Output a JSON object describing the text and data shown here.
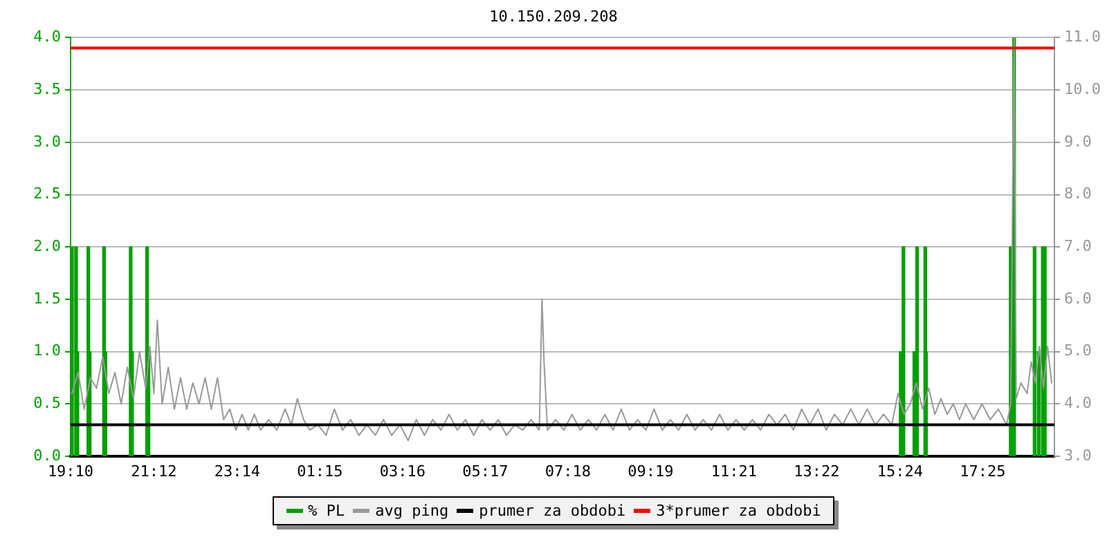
{
  "chart_data": {
    "type": "line",
    "title": "10.150.209.208",
    "legend": "bottom",
    "grid": "y",
    "marker": "none",
    "xlim": [
      "--01-01T19:10",
      "--01-02T19:10"
    ],
    "xticks": [
      {
        "value": "--01-01T19:10",
        "label": "19:10"
      },
      {
        "value": "--01-01T21:12",
        "label": "21:12"
      },
      {
        "value": "--01-01T23:14",
        "label": "23:14"
      },
      {
        "value": "--01-02T01:15",
        "label": "01:15"
      },
      {
        "value": "--01-02T03:16",
        "label": "03:16"
      },
      {
        "value": "--01-02T05:17",
        "label": "05:17"
      },
      {
        "value": "--01-02T07:18",
        "label": "07:18"
      },
      {
        "value": "--01-02T09:19",
        "label": "09:19"
      },
      {
        "value": "--01-02T11:21",
        "label": "11:21"
      },
      {
        "value": "--01-02T13:22",
        "label": "13:22"
      },
      {
        "value": "--01-02T15:24",
        "label": "15:24"
      },
      {
        "value": "--01-02T17:25",
        "label": "17:25"
      }
    ],
    "ylim": [
      0,
      4
    ],
    "yticks": [
      {
        "value": 0,
        "label": "0.0"
      },
      {
        "value": 0.5,
        "label": "0.5"
      },
      {
        "value": 1,
        "label": "1.0"
      },
      {
        "value": 1.5,
        "label": "1.5"
      },
      {
        "value": 2,
        "label": "2.0"
      },
      {
        "value": 2.5,
        "label": "2.5"
      },
      {
        "value": 3,
        "label": "3.0"
      },
      {
        "value": 3.5,
        "label": "3.5"
      },
      {
        "value": 4,
        "label": "4.0"
      }
    ],
    "y2lim": [
      3,
      11
    ],
    "y2ticks": [
      {
        "value": 3,
        "label": "3.0"
      },
      {
        "value": 4,
        "label": "4.0"
      },
      {
        "value": 5,
        "label": "5.0"
      },
      {
        "value": 6,
        "label": "6.0"
      },
      {
        "value": 7,
        "label": "7.0"
      },
      {
        "value": 8,
        "label": "8.0"
      },
      {
        "value": 9,
        "label": "9.0"
      },
      {
        "value": 10,
        "label": "10.0"
      },
      {
        "value": 11,
        "label": "11.0"
      }
    ],
    "series": [
      {
        "name": "% PL",
        "type": "bar",
        "color": "#00a000",
        "x": [
          "--01-01T19:12",
          "--01-01T19:18",
          "--01-01T19:20",
          "--01-01T19:36",
          "--01-01T19:38",
          "--01-01T19:59",
          "--01-01T20:01",
          "--01-01T20:38",
          "--01-01T20:40",
          "--01-01T21:02",
          "--01-01T21:04",
          "--01-02T15:25",
          "--01-02T15:29",
          "--01-02T15:45",
          "--01-02T15:49",
          "--01-02T16:01",
          "--01-02T16:02",
          "--01-02T18:06",
          "--01-02T18:11",
          "--01-02T18:41",
          "--01-02T18:47",
          "--01-02T18:53",
          "--01-02T18:56"
        ],
        "values": [
          2,
          2,
          1,
          2,
          1,
          2,
          1,
          2,
          1,
          2,
          1,
          1,
          2,
          1,
          2,
          2,
          1,
          2,
          4,
          2,
          1,
          2,
          2
        ]
      },
      {
        "name": "avg ping",
        "axis": "y2",
        "color": "#999999",
        "x": [
          "--01-01T19:12",
          "--01-01T19:21",
          "--01-01T19:30",
          "--01-01T19:39",
          "--01-01T19:48",
          "--01-01T19:57",
          "--01-01T20:06",
          "--01-01T20:15",
          "--01-01T20:24",
          "--01-01T20:33",
          "--01-01T20:42",
          "--01-01T20:51",
          "--01-01T21:00",
          "--01-01T21:06",
          "--01-01T21:12",
          "--01-01T21:17",
          "--01-01T21:24",
          "--01-01T21:33",
          "--01-01T21:42",
          "--01-01T21:51",
          "--01-01T22:00",
          "--01-01T22:09",
          "--01-01T22:18",
          "--01-01T22:27",
          "--01-01T22:36",
          "--01-01T22:45",
          "--01-01T22:54",
          "--01-01T23:03",
          "--01-01T23:12",
          "--01-01T23:21",
          "--01-01T23:30",
          "--01-01T23:39",
          "--01-01T23:48",
          "--01-02T00:00",
          "--01-02T00:12",
          "--01-02T00:24",
          "--01-02T00:33",
          "--01-02T00:42",
          "--01-02T00:51",
          "--01-02T01:00",
          "--01-02T01:12",
          "--01-02T01:24",
          "--01-02T01:36",
          "--01-02T01:48",
          "--01-02T02:00",
          "--01-02T02:12",
          "--01-02T02:24",
          "--01-02T02:36",
          "--01-02T02:48",
          "--01-02T03:00",
          "--01-02T03:12",
          "--01-02T03:24",
          "--01-02T03:36",
          "--01-02T03:48",
          "--01-02T04:00",
          "--01-02T04:12",
          "--01-02T04:24",
          "--01-02T04:36",
          "--01-02T04:48",
          "--01-02T05:00",
          "--01-02T05:12",
          "--01-02T05:24",
          "--01-02T05:36",
          "--01-02T05:48",
          "--01-02T06:00",
          "--01-02T06:12",
          "--01-02T06:24",
          "--01-02T06:36",
          "--01-02T06:40",
          "--01-02T06:43",
          "--01-02T06:48",
          "--01-02T07:00",
          "--01-02T07:12",
          "--01-02T07:24",
          "--01-02T07:36",
          "--01-02T07:48",
          "--01-02T08:00",
          "--01-02T08:12",
          "--01-02T08:24",
          "--01-02T08:36",
          "--01-02T08:48",
          "--01-02T09:00",
          "--01-02T09:12",
          "--01-02T09:24",
          "--01-02T09:36",
          "--01-02T09:48",
          "--01-02T10:00",
          "--01-02T10:12",
          "--01-02T10:24",
          "--01-02T10:36",
          "--01-02T10:48",
          "--01-02T11:00",
          "--01-02T11:12",
          "--01-02T11:24",
          "--01-02T11:36",
          "--01-02T11:48",
          "--01-02T12:00",
          "--01-02T12:12",
          "--01-02T12:24",
          "--01-02T12:36",
          "--01-02T12:48",
          "--01-02T13:00",
          "--01-02T13:12",
          "--01-02T13:24",
          "--01-02T13:36",
          "--01-02T13:48",
          "--01-02T14:00",
          "--01-02T14:12",
          "--01-02T14:24",
          "--01-02T14:36",
          "--01-02T14:48",
          "--01-02T15:00",
          "--01-02T15:12",
          "--01-02T15:21",
          "--01-02T15:30",
          "--01-02T15:39",
          "--01-02T15:48",
          "--01-02T15:57",
          "--01-02T16:06",
          "--01-02T16:15",
          "--01-02T16:24",
          "--01-02T16:33",
          "--01-02T16:42",
          "--01-02T16:51",
          "--01-02T17:00",
          "--01-02T17:12",
          "--01-02T17:24",
          "--01-02T17:36",
          "--01-02T17:48",
          "--01-02T18:00",
          "--01-02T18:06",
          "--01-02T18:11",
          "--01-02T18:14",
          "--01-02T18:21",
          "--01-02T18:30",
          "--01-02T18:36",
          "--01-02T18:42",
          "--01-02T18:48",
          "--01-02T18:54",
          "--01-02T19:00",
          "--01-02T19:06"
        ],
        "values": [
          4.2,
          4.6,
          3.9,
          4.5,
          4.3,
          4.9,
          4.2,
          4.6,
          4.0,
          4.7,
          4.1,
          5.0,
          4.3,
          5.1,
          4.2,
          5.6,
          4.0,
          4.7,
          3.9,
          4.5,
          3.9,
          4.4,
          4.0,
          4.5,
          3.9,
          4.5,
          3.7,
          3.9,
          3.5,
          3.8,
          3.5,
          3.8,
          3.5,
          3.7,
          3.5,
          3.9,
          3.6,
          4.1,
          3.7,
          3.5,
          3.6,
          3.4,
          3.9,
          3.5,
          3.7,
          3.4,
          3.6,
          3.4,
          3.7,
          3.4,
          3.6,
          3.3,
          3.7,
          3.4,
          3.7,
          3.5,
          3.8,
          3.5,
          3.7,
          3.4,
          3.7,
          3.5,
          3.7,
          3.4,
          3.6,
          3.5,
          3.7,
          3.5,
          6.0,
          4.8,
          3.5,
          3.7,
          3.5,
          3.8,
          3.5,
          3.7,
          3.5,
          3.8,
          3.5,
          3.9,
          3.5,
          3.7,
          3.5,
          3.9,
          3.5,
          3.7,
          3.5,
          3.8,
          3.5,
          3.7,
          3.5,
          3.8,
          3.5,
          3.7,
          3.5,
          3.7,
          3.5,
          3.8,
          3.6,
          3.8,
          3.5,
          3.9,
          3.6,
          3.9,
          3.5,
          3.8,
          3.6,
          3.9,
          3.6,
          3.9,
          3.6,
          3.8,
          3.6,
          4.2,
          3.8,
          4.0,
          4.4,
          3.9,
          4.3,
          3.8,
          4.1,
          3.8,
          4.0,
          3.7,
          4.0,
          3.7,
          4.0,
          3.7,
          3.9,
          3.6,
          4.0,
          11.0,
          4.1,
          4.4,
          4.2,
          4.8,
          4.4,
          5.1,
          4.3,
          5.1,
          4.4
        ]
      }
    ],
    "ref_lines": [
      {
        "axis": "y2",
        "value": 3.6,
        "label": "prumer za obdobi",
        "color": "#000000"
      },
      {
        "axis": "y2",
        "value": 10.8,
        "label": "3*prumer za obdobi",
        "color": "#ff0000"
      }
    ]
  }
}
